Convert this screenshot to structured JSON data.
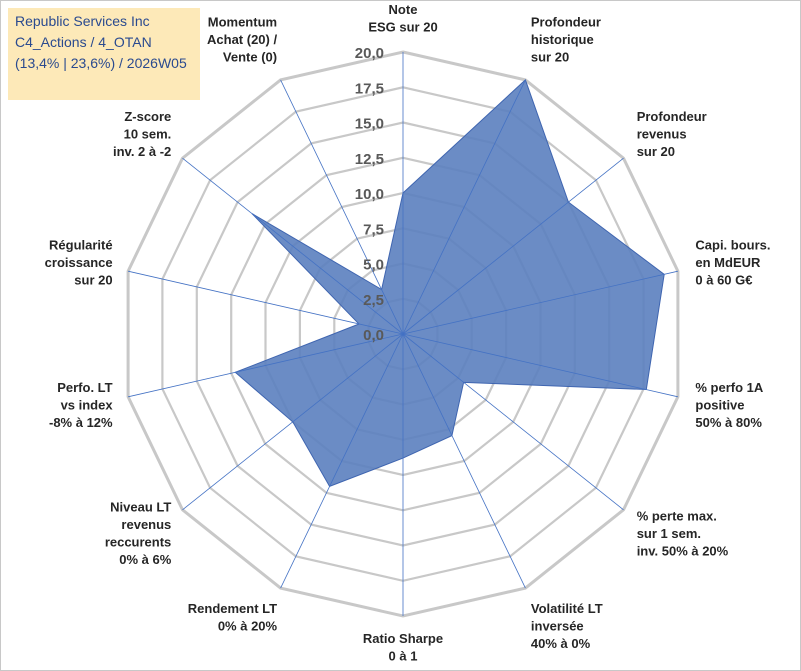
{
  "title": {
    "line1": "Republic Services Inc",
    "line2": "C4_Actions / 4_OTAN",
    "line3": "(13,4% | 23,6%) / 2026W05"
  },
  "colors": {
    "fill": "#5b7fbf",
    "stroke": "#3f65b0",
    "grid": "#c8c8c8",
    "spoke": "#4472c4",
    "title_bg": "#fde9b8",
    "title_text": "#2a4a8f"
  },
  "chart_data": {
    "type": "radar",
    "rmin": 0,
    "rmax": 20,
    "ticks": [
      "0,0",
      "2,5",
      "5,0",
      "7,5",
      "10,0",
      "12,5",
      "15,0",
      "17,5",
      "20,0"
    ],
    "axes": [
      {
        "label": [
          "Note",
          "ESG sur 20"
        ],
        "value": 10.0
      },
      {
        "label": [
          "Profondeur",
          "historique",
          "sur 20"
        ],
        "value": 20.0
      },
      {
        "label": [
          "Profondeur",
          "revenus",
          "sur 20"
        ],
        "value": 15.0
      },
      {
        "label": [
          "Capi. bours.",
          "en MdEUR",
          "0 à 60 G€"
        ],
        "value": 19.0
      },
      {
        "label": [
          "% perfo 1A",
          "positive",
          "50% à 80%"
        ],
        "value": 17.7
      },
      {
        "label": [
          "% perte max.",
          "sur 1 sem.",
          "inv. 50% à 20%"
        ],
        "value": 5.5
      },
      {
        "label": [
          "Volatilité LT",
          "inversée",
          "40% à 0%"
        ],
        "value": 8.0
      },
      {
        "label": [
          "Ratio Sharpe",
          "0 à 1"
        ],
        "value": 8.8
      },
      {
        "label": [
          "Rendement LT",
          "0% à 20%"
        ],
        "value": 12.0
      },
      {
        "label": [
          "Niveau LT",
          "revenus",
          "reccurents",
          "0% à 6%"
        ],
        "value": 10.0
      },
      {
        "label": [
          "Perfo. LT",
          "vs index",
          "-8% à 12%"
        ],
        "value": 12.2
      },
      {
        "label": [
          "Régularité",
          "croissance",
          "sur 20"
        ],
        "value": 3.2
      },
      {
        "label": [
          "Z-score",
          "10 sem.",
          "inv. 2 à -2"
        ],
        "value": 13.7
      },
      {
        "label": [
          "Momentum",
          "Achat (20) /",
          "Vente (0)"
        ],
        "value": 3.5
      }
    ]
  }
}
